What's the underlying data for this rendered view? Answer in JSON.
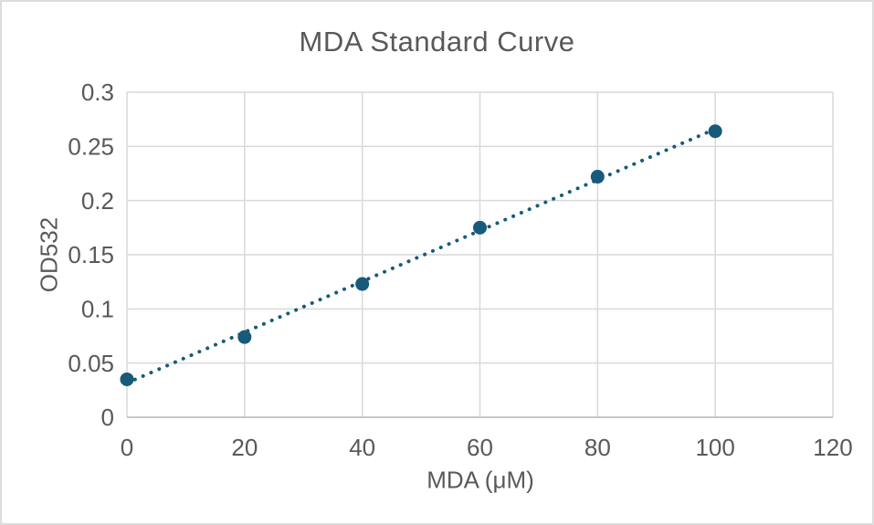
{
  "window": {
    "background_color": "#ffffff",
    "frame_border_color": "#dcdcdc"
  },
  "chart_data": {
    "type": "scatter",
    "title": "MDA Standard Curve",
    "xlabel": "MDA (μM)",
    "ylabel": "OD532",
    "x": [
      0,
      20,
      40,
      60,
      80,
      100
    ],
    "y": [
      0.035,
      0.074,
      0.123,
      0.175,
      0.222,
      0.264
    ],
    "xlim": [
      0,
      120
    ],
    "ylim": [
      0,
      0.3
    ],
    "x_ticks": [
      0,
      20,
      40,
      60,
      80,
      100,
      120
    ],
    "x_tick_labels": [
      "0",
      "20",
      "40",
      "60",
      "80",
      "100",
      "120"
    ],
    "y_ticks": [
      0,
      0.05,
      0.1,
      0.15,
      0.2,
      0.25,
      0.3
    ],
    "y_tick_labels": [
      "0",
      "0.05",
      "0.1",
      "0.15",
      "0.2",
      "0.25",
      "0.3"
    ],
    "grid": true,
    "legend": "none",
    "trendline": {
      "fit": "linear",
      "style": "dotted"
    },
    "series_color": "#175a7a",
    "gridline_color": "#d9d9d9",
    "axis_line_color": "#b7b7b7",
    "text_color": "#595959"
  }
}
